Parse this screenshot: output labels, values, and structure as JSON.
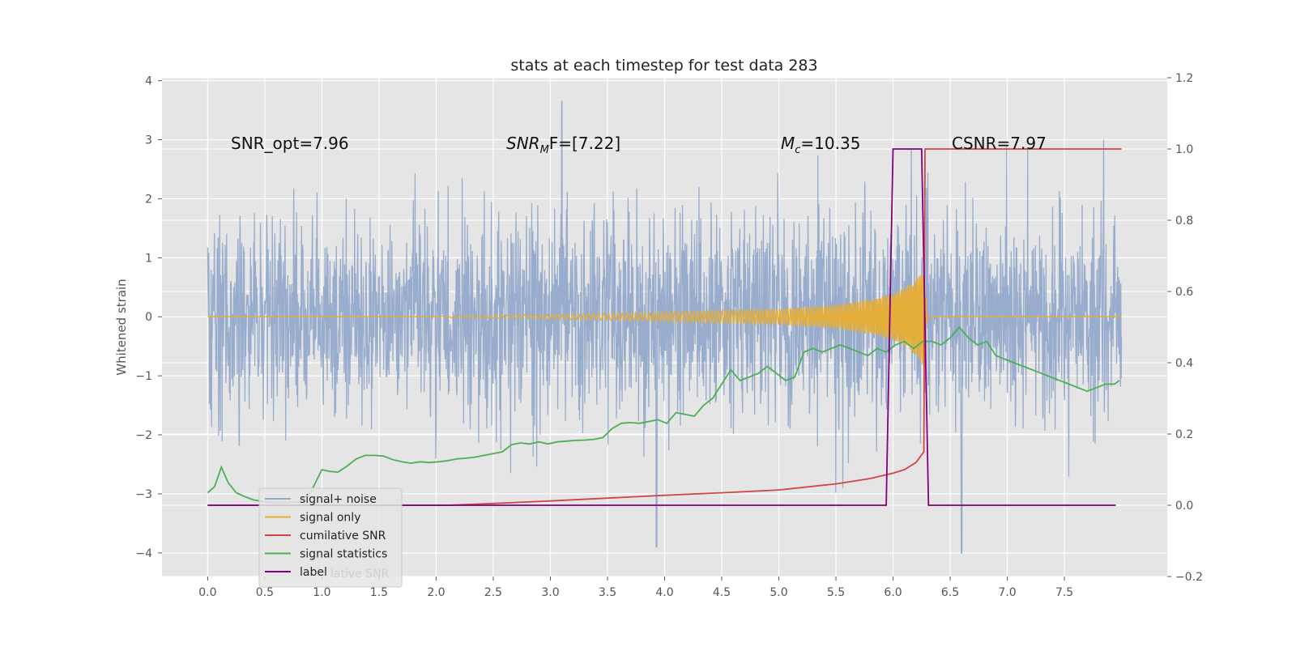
{
  "chart_data": {
    "type": "line",
    "title": "stats at each timestep for test data 283",
    "ylabel": "Whitened strain",
    "xlabel": "",
    "xlim": [
      -0.4,
      8.4
    ],
    "ylim": [
      -4.4,
      4.05
    ],
    "y2lim": [
      -0.2,
      1.2
    ],
    "grid": true,
    "x_ticks": [
      "0.0",
      "0.5",
      "1.0",
      "1.5",
      "2.0",
      "2.5",
      "3.0",
      "3.5",
      "4.0",
      "4.5",
      "5.0",
      "5.5",
      "6.0",
      "6.5",
      "7.0",
      "7.5"
    ],
    "y_ticks": [
      "4",
      "3",
      "2",
      "1",
      "0",
      "−1",
      "−2",
      "−3",
      "−4"
    ],
    "y2_ticks": [
      "1.2",
      "1.0",
      "0.8",
      "0.6",
      "0.4",
      "0.2",
      "0.0",
      "−0.2"
    ],
    "annotations": [
      {
        "label": "SNR_opt=7.96"
      },
      {
        "label": "SNR",
        "sub": "M",
        "suffix": "F=[7.22]"
      },
      {
        "label": "M",
        "sub": "c",
        "suffix": "=10.35"
      },
      {
        "label": "CSNR=7.97"
      }
    ],
    "legend": {
      "placement": "lower-left",
      "entries": [
        "signal+ noise",
        "signal only",
        "cumilative SNR",
        "signal statistics",
        "label"
      ],
      "ghost_text": "lative SNR"
    },
    "series": [
      {
        "name": "signal+ noise",
        "color": "#94a9cb",
        "description": "whitened noise, roughly -2.5..2.5 with spikes to 3.65 at x≈3.1 and -4.0 at x≈6.6",
        "x_range": [
          0.0,
          8.0
        ]
      },
      {
        "name": "signal only",
        "color": "#e5ae38",
        "amplitude_envelope": {
          "x": [
            2.0,
            3.0,
            4.0,
            5.0,
            5.5,
            5.8,
            6.0,
            6.1,
            6.2,
            6.27,
            6.3
          ],
          "amp": [
            0.01,
            0.04,
            0.08,
            0.13,
            0.2,
            0.3,
            0.4,
            0.5,
            0.65,
            0.85,
            0.0
          ]
        }
      },
      {
        "name": "cumilative SNR",
        "color": "#d04545",
        "axis": "right",
        "x": [
          0.0,
          2.1,
          2.5,
          3.0,
          3.5,
          4.0,
          4.5,
          5.0,
          5.5,
          5.8,
          6.0,
          6.1,
          6.2,
          6.27,
          6.28,
          8.0
        ],
        "y": [
          0.0,
          0.0,
          0.005,
          0.012,
          0.02,
          0.028,
          0.035,
          0.043,
          0.06,
          0.075,
          0.09,
          0.1,
          0.12,
          0.15,
          1.0,
          1.0
        ]
      },
      {
        "name": "signal statistics",
        "color": "#4caf58",
        "axis": "right",
        "x": [
          0.0,
          0.06,
          0.12,
          0.18,
          0.25,
          0.32,
          0.4,
          0.5,
          0.6,
          0.7,
          0.8,
          0.9,
          1.0,
          1.07,
          1.14,
          1.22,
          1.3,
          1.38,
          1.46,
          1.54,
          1.62,
          1.7,
          1.78,
          1.86,
          1.94,
          2.02,
          2.1,
          2.18,
          2.26,
          2.34,
          2.42,
          2.5,
          2.58,
          2.66,
          2.74,
          2.82,
          2.9,
          2.98,
          3.06,
          3.14,
          3.22,
          3.3,
          3.38,
          3.46,
          3.54,
          3.62,
          3.7,
          3.78,
          3.86,
          3.94,
          4.02,
          4.1,
          4.18,
          4.26,
          4.34,
          4.42,
          4.5,
          4.58,
          4.66,
          4.74,
          4.82,
          4.9,
          4.98,
          5.06,
          5.14,
          5.22,
          5.3,
          5.38,
          5.46,
          5.54,
          5.62,
          5.7,
          5.78,
          5.86,
          5.94,
          6.02,
          6.1,
          6.18,
          6.26,
          6.34,
          6.42,
          6.5,
          6.58,
          6.66,
          6.74,
          6.82,
          6.9,
          6.98,
          7.06,
          7.14,
          7.22,
          7.3,
          7.38,
          7.46,
          7.54,
          7.62,
          7.7,
          7.78,
          7.86,
          7.94,
          7.98
        ],
        "y": [
          0.035,
          0.052,
          0.107,
          0.063,
          0.035,
          0.025,
          0.015,
          0.01,
          0.008,
          0.008,
          0.01,
          0.035,
          0.1,
          0.095,
          0.093,
          0.11,
          0.13,
          0.14,
          0.14,
          0.138,
          0.128,
          0.122,
          0.118,
          0.122,
          0.12,
          0.122,
          0.125,
          0.13,
          0.132,
          0.135,
          0.14,
          0.145,
          0.15,
          0.17,
          0.175,
          0.172,
          0.178,
          0.172,
          0.178,
          0.18,
          0.182,
          0.183,
          0.185,
          0.19,
          0.215,
          0.23,
          0.232,
          0.23,
          0.235,
          0.24,
          0.23,
          0.26,
          0.255,
          0.25,
          0.28,
          0.3,
          0.34,
          0.38,
          0.35,
          0.36,
          0.37,
          0.39,
          0.37,
          0.35,
          0.36,
          0.43,
          0.44,
          0.43,
          0.44,
          0.45,
          0.44,
          0.43,
          0.42,
          0.44,
          0.43,
          0.45,
          0.46,
          0.44,
          0.46,
          0.46,
          0.45,
          0.47,
          0.5,
          0.47,
          0.45,
          0.46,
          0.42,
          0.41,
          0.4,
          0.39,
          0.38,
          0.37,
          0.36,
          0.35,
          0.34,
          0.33,
          0.32,
          0.33,
          0.34,
          0.34,
          0.35
        ]
      },
      {
        "name": "label",
        "color": "#800080",
        "axis": "right",
        "x": [
          0.0,
          5.94,
          6.0,
          6.25,
          6.31,
          7.95
        ],
        "y": [
          0.0,
          0.0,
          1.0,
          1.0,
          0.0,
          0.0
        ]
      }
    ]
  }
}
